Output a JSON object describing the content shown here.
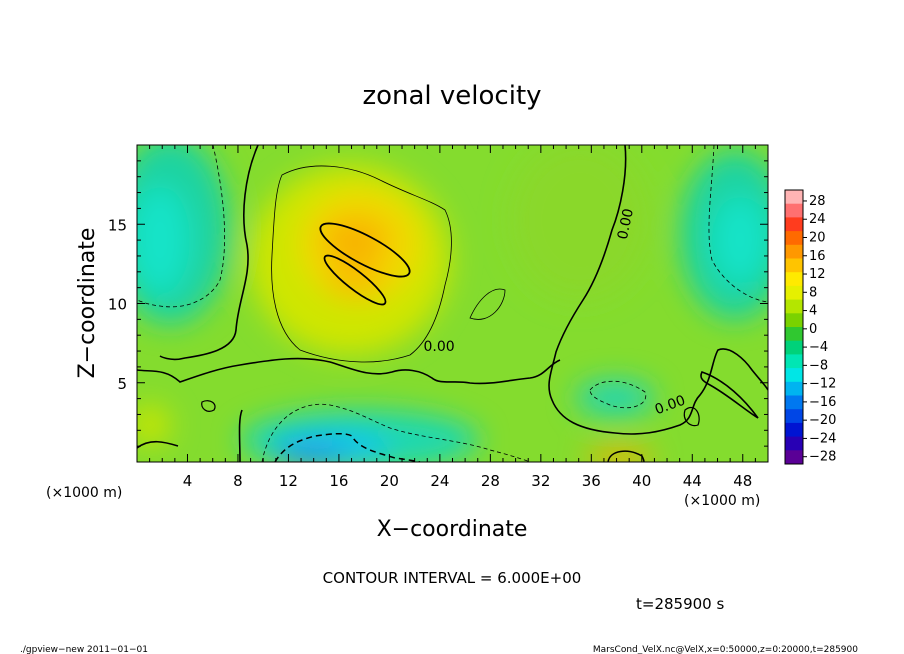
{
  "chart_data": {
    "type": "heatmap",
    "title": "zonal velocity",
    "xlabel": "X−coordinate",
    "ylabel": "Z−coordinate",
    "x_unit_left": "(×1000 m)",
    "x_unit_right": "(×1000 m)",
    "xlim": [
      0,
      50
    ],
    "ylim": [
      0,
      20
    ],
    "x_ticks": [
      4,
      8,
      12,
      16,
      20,
      24,
      28,
      32,
      36,
      40,
      44,
      48
    ],
    "y_ticks": [
      5,
      10,
      15
    ],
    "contour_interval_text": "CONTOUR INTERVAL = 6.000E+00",
    "time_text": "t=285900 s",
    "colorbar": {
      "labels": [
        "28",
        "24",
        "20",
        "16",
        "12",
        "8",
        "4",
        "0",
        "−4",
        "−8",
        "−12",
        "−16",
        "−20",
        "−24",
        "−28"
      ],
      "colors": [
        "#ffb4b4",
        "#ff7070",
        "#ff3c1e",
        "#ff6a00",
        "#ff9800",
        "#ffc400",
        "#ffea00",
        "#e6f000",
        "#b4e600",
        "#7ad200",
        "#30c830",
        "#00d27a",
        "#00e6b4",
        "#00e6e6",
        "#00b4f0",
        "#0078f0",
        "#0046e6",
        "#0014d2",
        "#2800b4",
        "#5a0096"
      ]
    },
    "contour_labels": [
      {
        "text": "0.00",
        "x": 22.7,
        "z": 7.0
      },
      {
        "text": "0.00",
        "x": 38.8,
        "z": 14.0
      },
      {
        "text": "0.00",
        "x": 41.2,
        "z": 3.0
      }
    ],
    "footer_left": "./gpview−new   2011−01−01",
    "footer_right": "MarsCond_VelX.nc@VelX,x=0:50000,z=0:20000,t=285900"
  }
}
